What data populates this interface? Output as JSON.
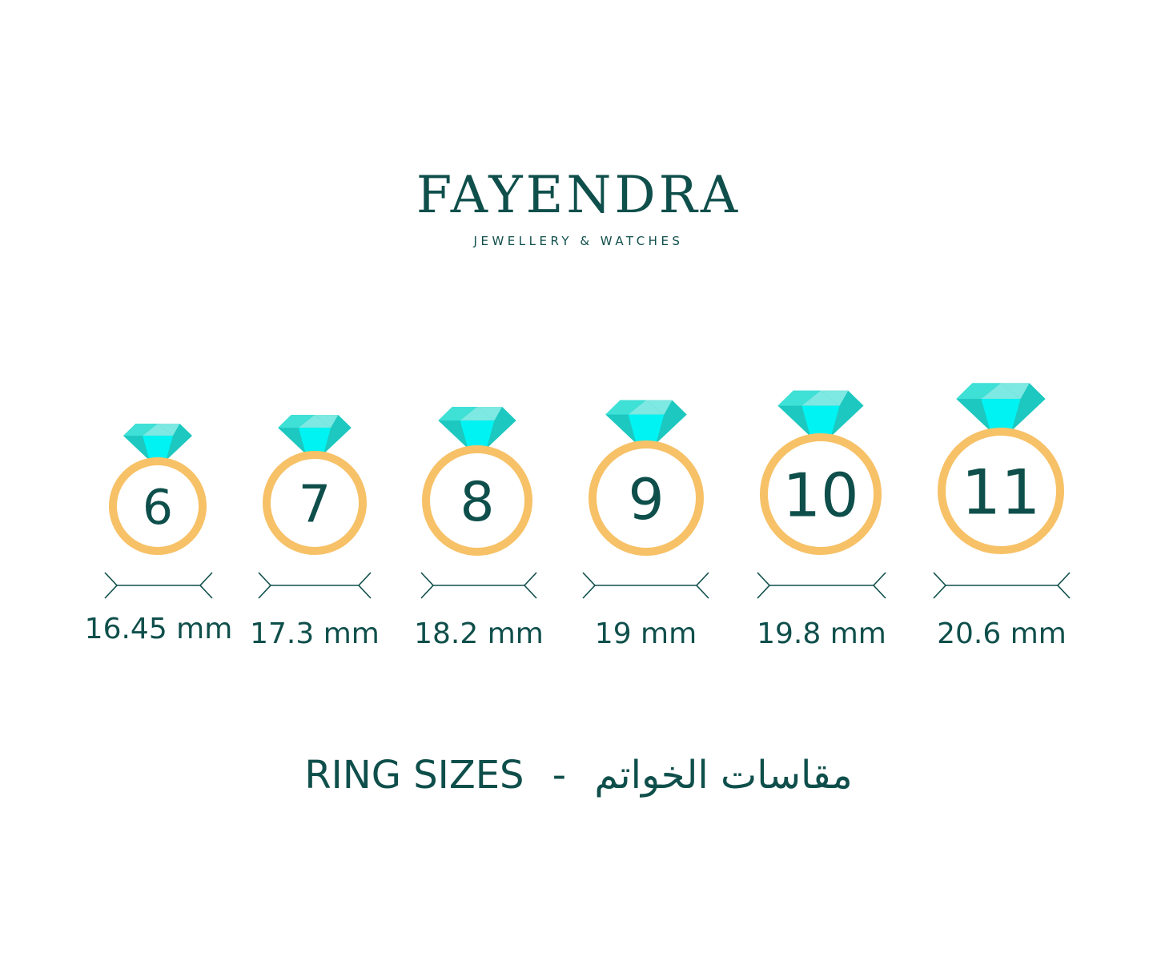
{
  "logo": {
    "brand": "FAYENDRA",
    "tagline": "JEWELLERY & WATCHES"
  },
  "colors": {
    "text": "#0f4f4b",
    "ring": "#f7c167",
    "gem_light": "#3fe0d6",
    "gem_mid": "#1cc8bf",
    "gem_bright": "#00f3f3",
    "gem_pale": "#7ee8e2"
  },
  "sizes": [
    {
      "size": "6",
      "diameter": "16.45 mm"
    },
    {
      "size": "7",
      "diameter": "17.3 mm"
    },
    {
      "size": "8",
      "diameter": "18.2 mm"
    },
    {
      "size": "9",
      "diameter": "19 mm"
    },
    {
      "size": "10",
      "diameter": "19.8 mm"
    },
    {
      "size": "11",
      "diameter": "20.6 mm"
    }
  ],
  "footer": {
    "english": "RING SIZES",
    "separator": "-",
    "arabic": "مقاسات الخواتم"
  }
}
